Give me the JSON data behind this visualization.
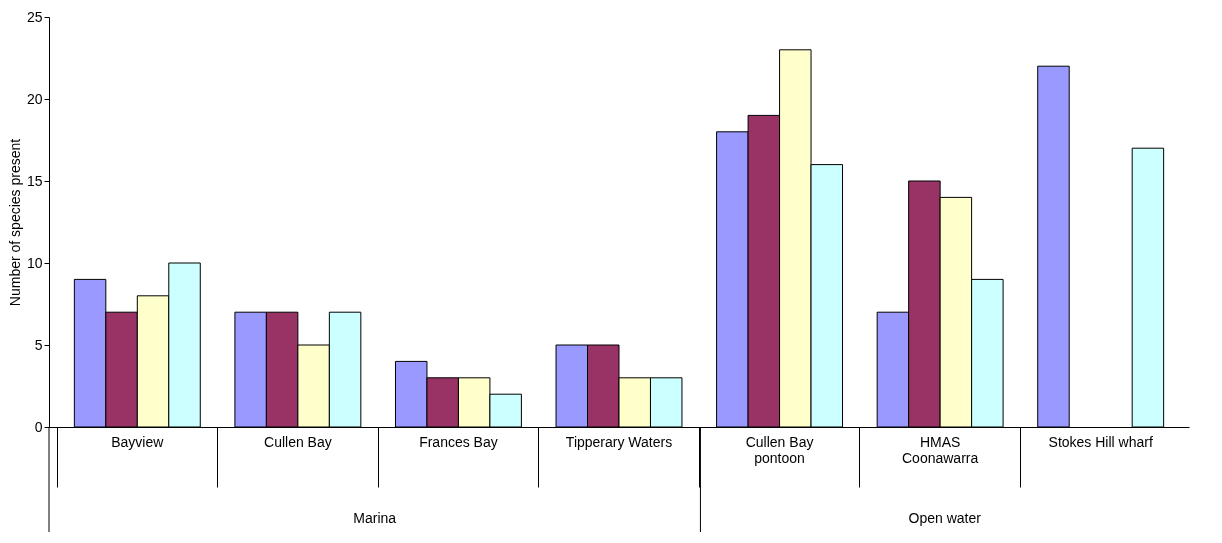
{
  "chart_data": {
    "type": "bar",
    "ylabel": "Number of species present",
    "categories": [
      "Bayview",
      "Cullen Bay",
      "Frances Bay",
      "Tipperary Waters",
      "Cullen Bay\npontoon",
      "HMAS\nCoonawarra",
      "Stokes Hill wharf"
    ],
    "series": [
      {
        "color": "#9999ff",
        "values": [
          9,
          7,
          4,
          5,
          18,
          7,
          22
        ]
      },
      {
        "color": "#993366",
        "values": [
          7,
          7,
          3,
          5,
          19,
          15,
          null
        ]
      },
      {
        "color": "#ffffcc",
        "values": [
          8,
          5,
          3,
          3,
          23,
          14,
          null
        ]
      },
      {
        "color": "#ccffff",
        "values": [
          10,
          7,
          2,
          3,
          16,
          9,
          17
        ]
      }
    ],
    "ylim": [
      0,
      25
    ],
    "yticks": [
      0,
      5,
      10,
      15,
      20,
      25
    ],
    "grid": false,
    "legend": false,
    "annotations": [
      "Marina",
      "Open water"
    ]
  }
}
